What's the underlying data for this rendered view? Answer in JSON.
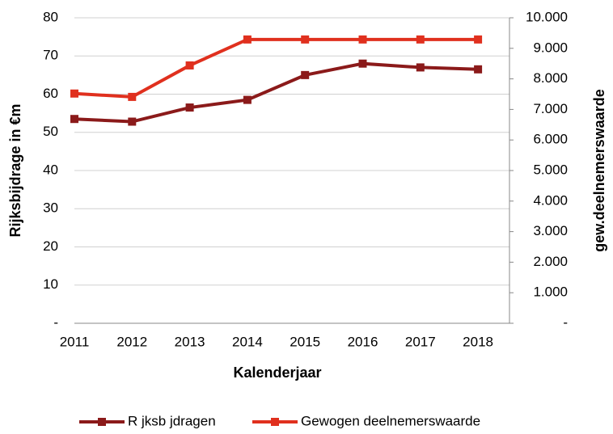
{
  "chart_data": {
    "type": "line",
    "categories": [
      "2011",
      "2012",
      "2013",
      "2014",
      "2015",
      "2016",
      "2017",
      "2018"
    ],
    "series": [
      {
        "name": "R jksb jdragen",
        "color": "#8b1a1a",
        "values": [
          53.5,
          52.8,
          56.5,
          58.5,
          65,
          68,
          67,
          66.5
        ]
      },
      {
        "name": "Gewogen deelnemerswaarde",
        "color": "#e0301e",
        "axis": "y2",
        "values": [
          7520,
          7410,
          8440,
          9290,
          9290,
          9290,
          9290,
          9290
        ]
      }
    ],
    "x_label": "Kalenderjaar",
    "y_label": "Rijksbijdrage in €m",
    "y2_label": "gew.deelnemerswaarde",
    "ylim": [
      0,
      80
    ],
    "yticks": [
      {
        "value": 0,
        "label": "-"
      },
      10,
      20,
      30,
      40,
      50,
      60,
      70,
      80
    ],
    "y2lim": [
      0,
      10000
    ],
    "y2ticks": [
      {
        "value": 0,
        "label": "-"
      },
      {
        "value": 1000,
        "label": "1.000"
      },
      {
        "value": 2000,
        "label": "2.000"
      },
      {
        "value": 3000,
        "label": "3.000"
      },
      {
        "value": 4000,
        "label": "4.000"
      },
      {
        "value": 5000,
        "label": "5.000"
      },
      {
        "value": 6000,
        "label": "6.000"
      },
      {
        "value": 7000,
        "label": "7.000"
      },
      {
        "value": 8000,
        "label": "8.000"
      },
      {
        "value": 9000,
        "label": "9.000"
      },
      {
        "value": 10000,
        "label": "10.000"
      }
    ],
    "grid": true,
    "legend": "bottom"
  }
}
